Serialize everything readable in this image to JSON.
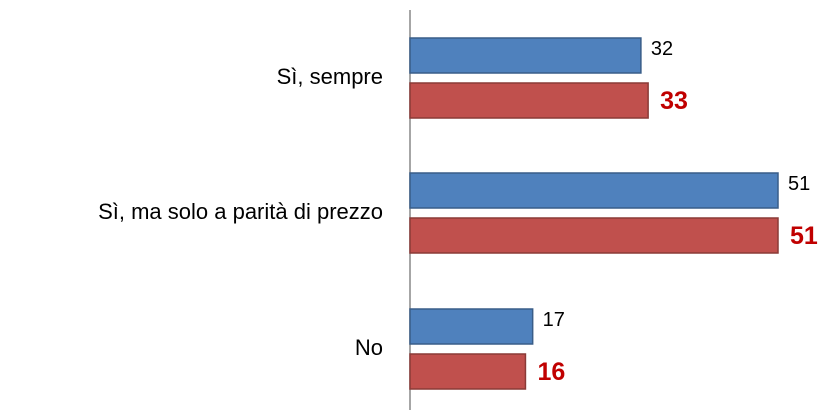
{
  "chart_data": {
    "type": "bar",
    "orientation": "horizontal",
    "categories": [
      "Sì, sempre",
      "Sì, ma solo a parità di prezzo",
      "No"
    ],
    "series": [
      {
        "color": "#4f81bd",
        "values": [
          32,
          51,
          17
        ]
      },
      {
        "color": "#c0504d",
        "values": [
          33,
          51,
          16
        ]
      }
    ]
  }
}
